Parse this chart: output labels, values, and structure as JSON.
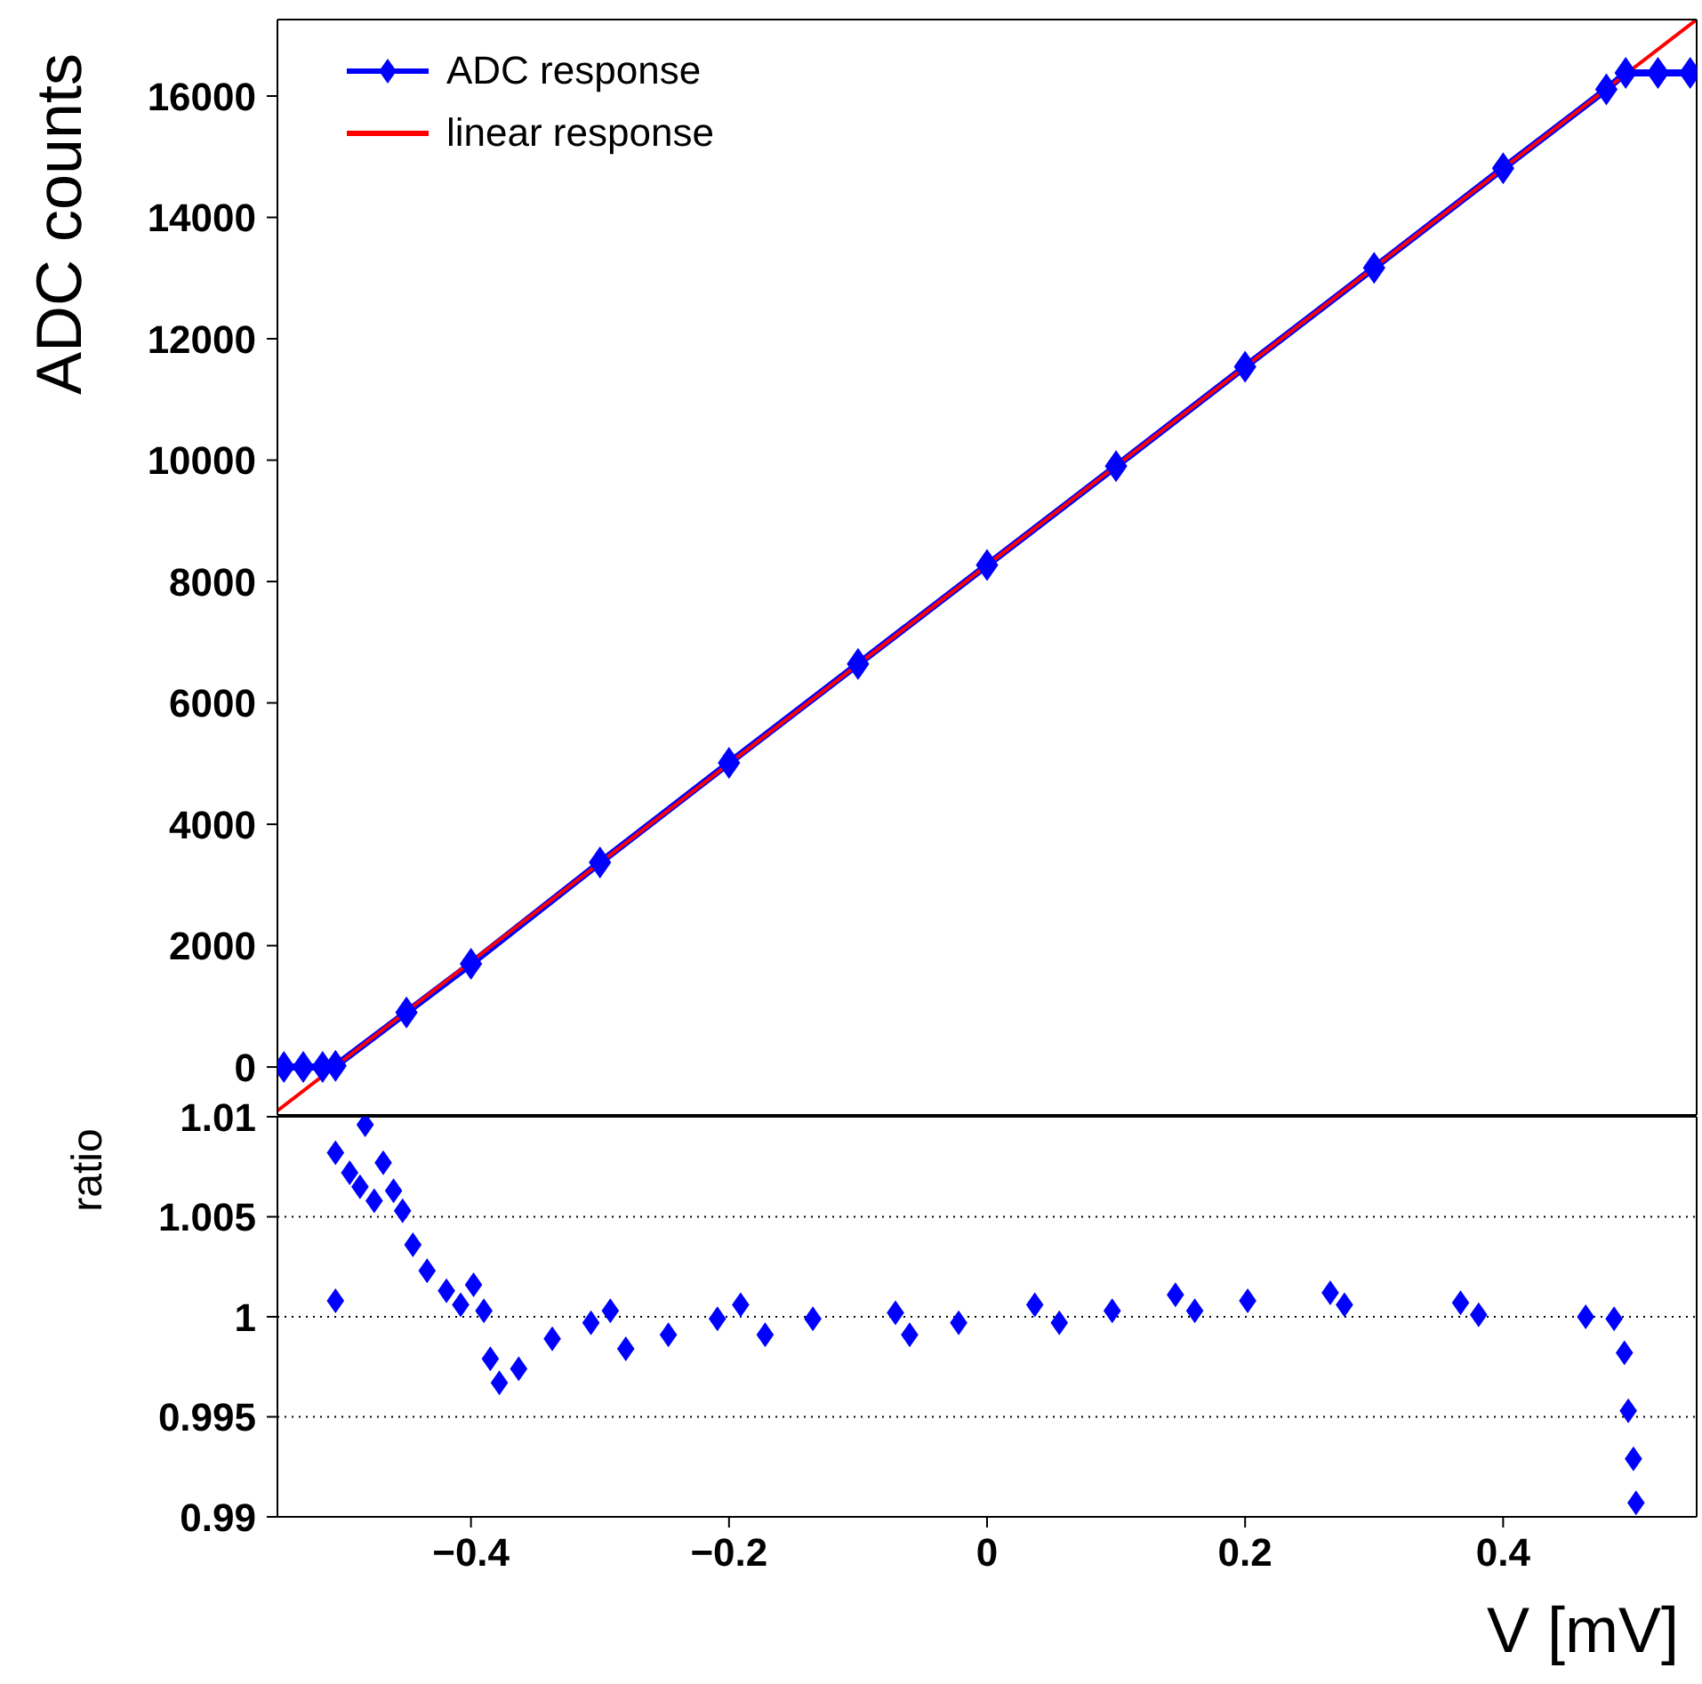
{
  "chart_data": [
    {
      "type": "line",
      "ylabel": "ADC counts",
      "xlim": [
        -0.55,
        0.55
      ],
      "xticks": [
        -0.4,
        -0.2,
        0,
        0.2,
        0.4
      ],
      "ylim": [
        -790,
        17260
      ],
      "yticks": [
        0,
        2000,
        4000,
        6000,
        8000,
        10000,
        12000,
        14000,
        16000
      ],
      "tick_labels": "y",
      "grid": false,
      "legend": "top left",
      "series": [
        {
          "name": "ADC response",
          "color": "#0000ff",
          "marker": "diamond",
          "x": [
            -0.545,
            -0.53,
            -0.515,
            -0.505,
            -0.45,
            -0.4,
            -0.3,
            -0.2,
            -0.1,
            0,
            0.1,
            0.2,
            0.3,
            0.4,
            0.48,
            0.495,
            0.52,
            0.545
          ],
          "values": [
            0,
            0,
            0,
            20,
            900,
            1700,
            3370,
            5010,
            6640,
            8270,
            9900,
            11540,
            13170,
            14810,
            16110,
            16380,
            16380,
            16380
          ]
        },
        {
          "name": "linear response",
          "color": "#ff0000",
          "marker": "none",
          "x": [
            -0.55,
            0.55
          ],
          "values": [
            -720,
            17260
          ]
        }
      ]
    },
    {
      "type": "scatter",
      "ylabel": "ratio",
      "xlabel": "V [mV]",
      "xlim": [
        -0.55,
        0.55
      ],
      "xticks": [
        -0.4,
        -0.2,
        0,
        0.2,
        0.4
      ],
      "ylim": [
        0.99,
        1.01
      ],
      "yticks": [
        0.99,
        0.995,
        1,
        1.005,
        1.01
      ],
      "grid": "y",
      "marker": "diamond",
      "color": "#0000ff",
      "x": [
        -0.505,
        -0.505,
        -0.494,
        -0.482,
        -0.486,
        -0.475,
        -0.468,
        -0.46,
        -0.453,
        -0.445,
        -0.434,
        -0.419,
        -0.408,
        -0.398,
        -0.39,
        -0.385,
        -0.378,
        -0.363,
        -0.337,
        -0.307,
        -0.292,
        -0.28,
        -0.247,
        -0.209,
        -0.191,
        -0.172,
        -0.135,
        -0.071,
        -0.06,
        -0.022,
        0.037,
        0.056,
        0.097,
        0.146,
        0.161,
        0.202,
        0.266,
        0.277,
        0.367,
        0.381,
        0.464,
        0.486,
        0.494,
        0.497,
        0.501,
        0.503
      ],
      "values": [
        1.0008,
        1.0082,
        1.0072,
        1.0096,
        1.0065,
        1.0058,
        1.0077,
        1.0063,
        1.0053,
        1.0036,
        1.0023,
        1.0013,
        1.0006,
        1.0016,
        1.0003,
        0.9979,
        0.9967,
        0.9974,
        0.9989,
        0.9997,
        1.0003,
        0.9984,
        0.9991,
        0.9999,
        1.0006,
        0.9991,
        0.9999,
        1.0002,
        0.9991,
        0.9997,
        1.0006,
        0.9997,
        1.0003,
        1.0011,
        1.0003,
        1.0008,
        1.0012,
        1.0006,
        1.0007,
        1.0001,
        1.0,
        0.9999,
        0.9982,
        0.9953,
        0.9929,
        0.9907
      ]
    }
  ]
}
